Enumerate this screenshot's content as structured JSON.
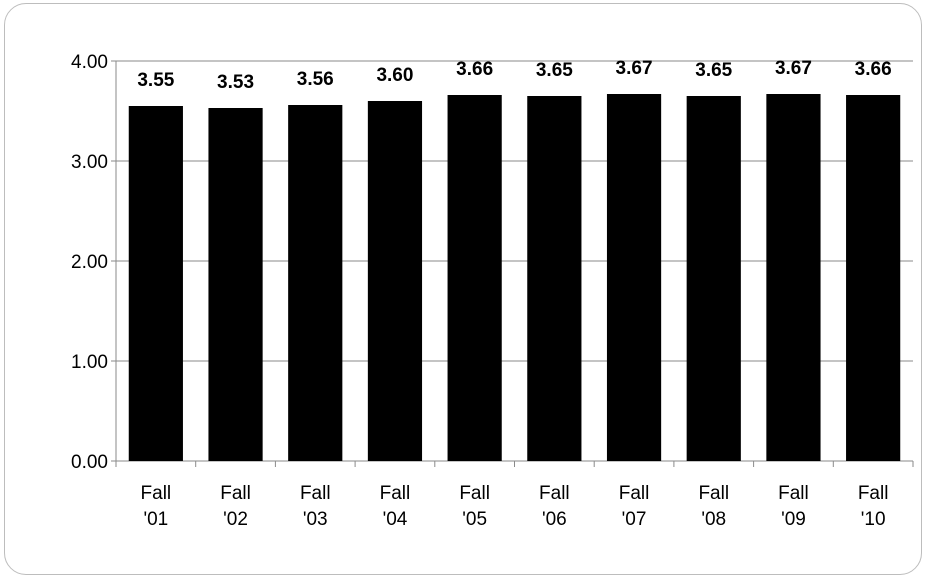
{
  "chart_data": {
    "type": "bar",
    "categories": [
      [
        "Fall",
        "'01"
      ],
      [
        "Fall",
        "'02"
      ],
      [
        "Fall",
        "'03"
      ],
      [
        "Fall",
        "'04"
      ],
      [
        "Fall",
        "'05"
      ],
      [
        "Fall",
        "'06"
      ],
      [
        "Fall",
        "'07"
      ],
      [
        "Fall",
        "'08"
      ],
      [
        "Fall",
        "'09"
      ],
      [
        "Fall",
        "'10"
      ]
    ],
    "values": [
      3.55,
      3.53,
      3.56,
      3.6,
      3.66,
      3.65,
      3.67,
      3.65,
      3.67,
      3.66
    ],
    "data_labels": [
      "3.55",
      "3.53",
      "3.56",
      "3.60",
      "3.66",
      "3.65",
      "3.67",
      "3.65",
      "3.67",
      "3.66"
    ],
    "ylim": [
      0,
      4
    ],
    "yticks": [
      0,
      1,
      2,
      3,
      4
    ],
    "ytick_labels": [
      "0.00",
      "1.00",
      "2.00",
      "3.00",
      "4.00"
    ],
    "title": "",
    "xlabel": "",
    "ylabel": "",
    "grid": true,
    "legend": "none",
    "colors": {
      "bar": "#000000",
      "grid": "#8a8a8a",
      "axis": "#8a8a8a",
      "frame": "#bdbdbd"
    }
  }
}
